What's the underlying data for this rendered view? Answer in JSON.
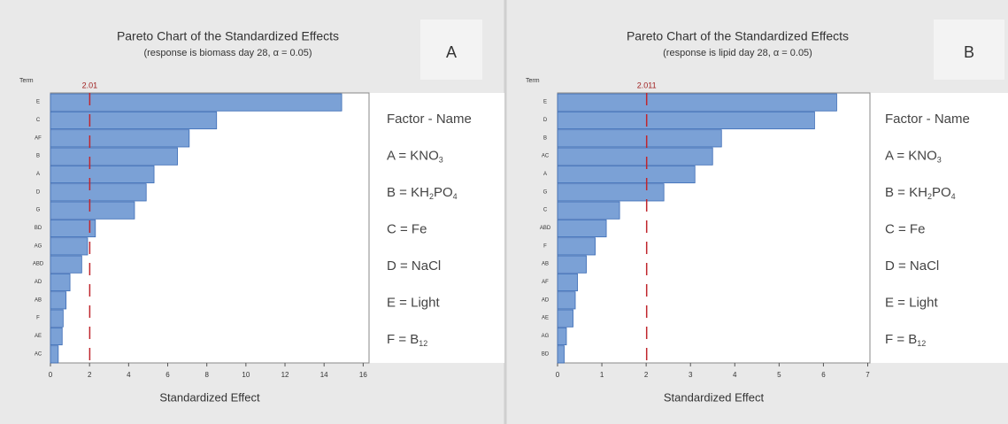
{
  "chart_data": [
    {
      "type": "pareto-bar",
      "panel": "A",
      "title": "Pareto Chart of the Standardized Effects",
      "subtitle": "(response is biomass day 28, α = 0.05)",
      "y_label": "Term",
      "x_label": "Standardized Effect",
      "color": "#7ba1d6",
      "reference_line": 2.01,
      "categories": [
        "E",
        "C",
        "AF",
        "B",
        "A",
        "D",
        "G",
        "BD",
        "AG",
        "ABD",
        "AD",
        "AB",
        "F",
        "AE",
        "AC"
      ],
      "values": [
        14.9,
        8.5,
        7.1,
        6.5,
        5.3,
        4.9,
        4.3,
        2.3,
        1.9,
        1.6,
        1.0,
        0.8,
        0.65,
        0.6,
        0.4
      ],
      "xlim": [
        0,
        16.3
      ],
      "xticks": [
        0,
        2,
        4,
        6,
        8,
        10,
        12,
        14,
        16
      ],
      "factors": [
        [
          "Factor - Name"
        ],
        [
          "A = KNO",
          "3"
        ],
        [
          "B = KH",
          "2",
          "PO",
          "4"
        ],
        [
          "C = Fe"
        ],
        [
          "D = NaCl"
        ],
        [
          "E = Light"
        ],
        [
          "F =  B",
          "12"
        ]
      ]
    },
    {
      "type": "pareto-bar",
      "panel": "B",
      "title": "Pareto Chart of the Standardized Effects",
      "subtitle": "(response is lipid day 28, α = 0.05)",
      "y_label": "Term",
      "x_label": "Standardized Effect",
      "color": "#7ba1d6",
      "reference_line": 2.011,
      "categories": [
        "E",
        "D",
        "B",
        "AC",
        "A",
        "G",
        "C",
        "ABD",
        "F",
        "AB",
        "AF",
        "AD",
        "AE",
        "AG",
        "BD"
      ],
      "values": [
        6.3,
        5.8,
        3.7,
        3.5,
        3.1,
        2.4,
        1.4,
        1.1,
        0.85,
        0.65,
        0.45,
        0.4,
        0.35,
        0.2,
        0.15
      ],
      "xlim": [
        0,
        7.05
      ],
      "xticks": [
        0,
        1,
        2,
        3,
        4,
        5,
        6,
        7
      ],
      "factors": [
        [
          "Factor - Name"
        ],
        [
          "A = KNO",
          "3"
        ],
        [
          "B = KH",
          "2",
          "PO",
          "4"
        ],
        [
          "C = Fe"
        ],
        [
          "D = NaCl"
        ],
        [
          "E = Light"
        ],
        [
          "F =  B",
          "12"
        ]
      ]
    }
  ]
}
